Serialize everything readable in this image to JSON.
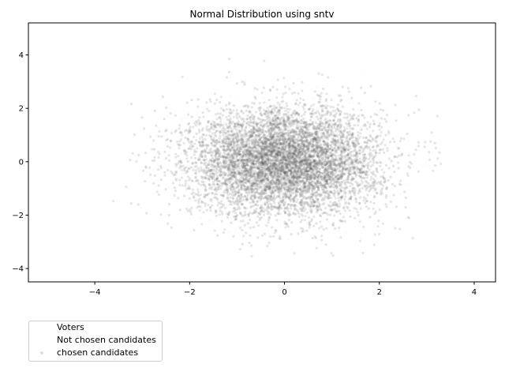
{
  "chart_data": {
    "type": "scatter",
    "title": "Normal Distribution using sntv",
    "xlabel": "",
    "ylabel": "",
    "xlim": [
      -5.4,
      4.45
    ],
    "ylim": [
      -4.5,
      5.2
    ],
    "xticks": [
      -4,
      -2,
      0,
      2,
      4
    ],
    "yticks": [
      -4,
      -2,
      0,
      2,
      4
    ],
    "grid": false,
    "legend_position": "below-left",
    "series": [
      {
        "name": "Voters",
        "distribution": "normal",
        "mean": [
          0,
          0
        ],
        "std": [
          1,
          1
        ],
        "color": "#1f77b4",
        "alpha": 0.0
      },
      {
        "name": "Not chosen candidates",
        "distribution": "normal",
        "mean": [
          0,
          0
        ],
        "std": [
          1,
          1
        ],
        "color": "#d9d9d9",
        "alpha": 0.08
      },
      {
        "name": "chosen candidates",
        "distribution": "normal",
        "mean": [
          0,
          0
        ],
        "std": [
          1,
          1
        ],
        "color": "#555555",
        "alpha": 0.15
      }
    ]
  },
  "legend": {
    "items": [
      {
        "label": "Voters",
        "color": "#ffffff"
      },
      {
        "label": "Not chosen candidates",
        "color": "#ffffff"
      },
      {
        "label": "chosen candidates",
        "color": "#dddddd"
      }
    ]
  }
}
